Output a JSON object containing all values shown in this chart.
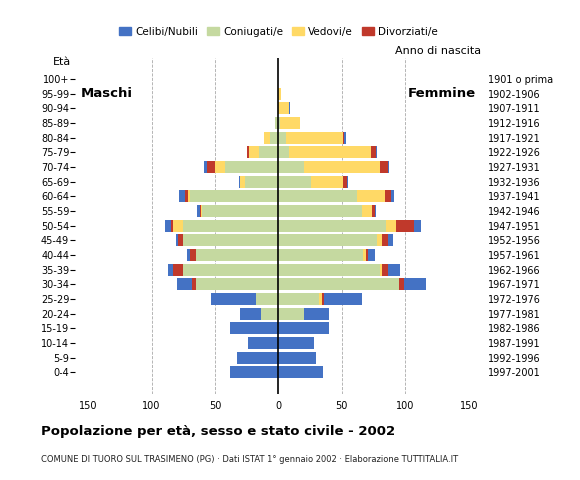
{
  "age_groups": [
    "100+",
    "95-99",
    "90-94",
    "85-89",
    "80-84",
    "75-79",
    "70-74",
    "65-69",
    "60-64",
    "55-59",
    "50-54",
    "45-49",
    "40-44",
    "35-39",
    "30-34",
    "25-29",
    "20-24",
    "15-19",
    "10-14",
    "5-9",
    "0-4"
  ],
  "birth_years": [
    "1901 o prima",
    "1902-1906",
    "1907-1911",
    "1912-1916",
    "1917-1921",
    "1922-1926",
    "1927-1931",
    "1932-1936",
    "1937-1941",
    "1942-1946",
    "1947-1951",
    "1952-1956",
    "1957-1961",
    "1962-1966",
    "1967-1971",
    "1972-1976",
    "1977-1981",
    "1982-1986",
    "1987-1991",
    "1992-1996",
    "1997-2001"
  ],
  "males_coniugati": [
    0,
    0,
    0,
    3,
    7,
    15,
    42,
    26,
    70,
    60,
    75,
    75,
    65,
    75,
    65,
    18,
    14,
    0,
    0,
    0,
    0
  ],
  "males_vedovi": [
    0,
    0,
    0,
    0,
    4,
    8,
    8,
    4,
    1,
    1,
    8,
    0,
    0,
    0,
    0,
    0,
    0,
    0,
    0,
    0,
    0
  ],
  "males_divorziati": [
    0,
    0,
    0,
    0,
    0,
    2,
    6,
    0,
    3,
    1,
    2,
    4,
    5,
    8,
    3,
    0,
    0,
    0,
    0,
    0,
    0
  ],
  "males_celibi": [
    0,
    0,
    0,
    0,
    0,
    0,
    3,
    1,
    4,
    2,
    4,
    2,
    2,
    4,
    12,
    35,
    16,
    38,
    24,
    33,
    38
  ],
  "females_coniugati": [
    0,
    0,
    0,
    1,
    6,
    8,
    20,
    26,
    62,
    66,
    85,
    78,
    67,
    80,
    95,
    32,
    20,
    0,
    0,
    0,
    0
  ],
  "females_vedovi": [
    0,
    2,
    8,
    16,
    45,
    65,
    60,
    25,
    22,
    8,
    8,
    4,
    2,
    2,
    0,
    2,
    0,
    0,
    0,
    0,
    0
  ],
  "females_divorziati": [
    0,
    0,
    0,
    0,
    1,
    4,
    6,
    3,
    5,
    2,
    14,
    4,
    2,
    4,
    4,
    2,
    0,
    0,
    0,
    0,
    0
  ],
  "females_celibi": [
    0,
    0,
    1,
    0,
    1,
    1,
    1,
    1,
    2,
    1,
    5,
    4,
    5,
    10,
    17,
    30,
    20,
    40,
    28,
    30,
    35
  ],
  "color_celibi": "#4472c4",
  "color_coniugati": "#c5d9a0",
  "color_vedovi": "#ffd966",
  "color_divorziati": "#c0392b",
  "xlim": 160,
  "xticks": [
    -150,
    -100,
    -50,
    0,
    50,
    100,
    150
  ],
  "title": "Popolazione per età, sesso e stato civile - 2002",
  "subtitle": "COMUNE DI TUORO SUL TRASIMENO (PG) · Dati ISTAT 1° gennaio 2002 · Elaborazione TUTTITALIA.IT",
  "label_maschi": "Maschi",
  "label_femmine": "Femmine",
  "label_eta": "Età",
  "label_anno": "Anno di nascita",
  "legend_labels": [
    "Celibi/Nubili",
    "Coniugati/e",
    "Vedovi/e",
    "Divorziati/e"
  ],
  "background_color": "#ffffff",
  "grid_color": "#aaaaaa"
}
